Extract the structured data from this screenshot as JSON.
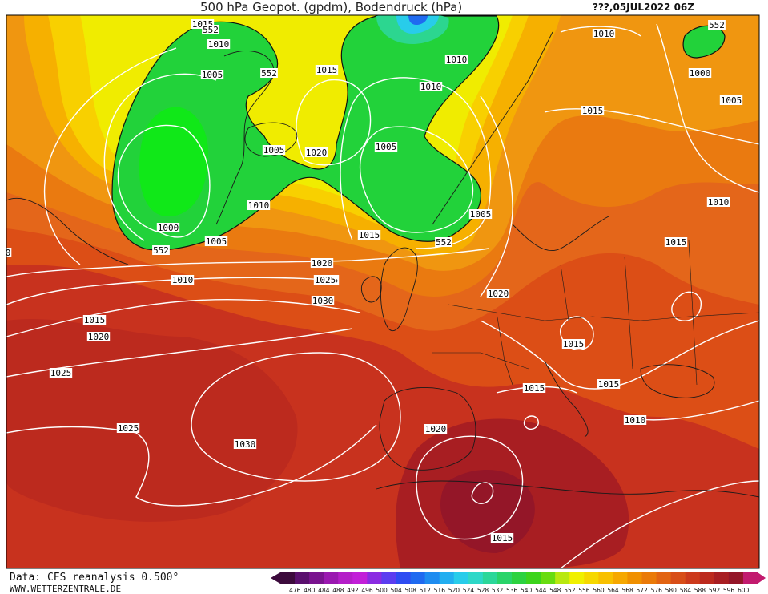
{
  "header": {
    "title": "500 hPa Geopot. (gpdm), Bodendruck (hPa)",
    "date": "???,05JUL2022 06Z"
  },
  "footer": {
    "data_source": "Data: CFS reanalysis 0.500°",
    "website": "WWW.WETTERZENTRALE.DE"
  },
  "colorbar": {
    "labels": [
      "476",
      "480",
      "484",
      "488",
      "492",
      "496",
      "500",
      "504",
      "508",
      "512",
      "516",
      "520",
      "524",
      "528",
      "532",
      "536",
      "540",
      "544",
      "548",
      "552",
      "556",
      "560",
      "564",
      "568",
      "572",
      "576",
      "580",
      "584",
      "588",
      "592",
      "596",
      "600"
    ],
    "colors": [
      "#3c0a3c",
      "#5a0f6e",
      "#7a138f",
      "#9a18b0",
      "#b41ec8",
      "#c21fd8",
      "#8a2be2",
      "#5b3df0",
      "#2e4cf2",
      "#1f6af0",
      "#1e8cf0",
      "#22aef0",
      "#28ccea",
      "#2ed8c8",
      "#2cd79a",
      "#2ad46a",
      "#2cd240",
      "#3cd41c",
      "#68dc10",
      "#b8e810",
      "#f0f000",
      "#f6d800",
      "#f8c000",
      "#f6a800",
      "#f09000",
      "#ea7a08",
      "#e26412",
      "#d84e18",
      "#cc3a1c",
      "#bc2a1e",
      "#a81e22",
      "#941628",
      "#c21a6e"
    ]
  },
  "isobar_labels": [
    {
      "text": "1015"
    },
    {
      "text": "1010"
    },
    {
      "text": "552"
    },
    {
      "text": "1005"
    },
    {
      "text": "552"
    },
    {
      "text": "1015"
    },
    {
      "text": "1010"
    },
    {
      "text": "1010"
    },
    {
      "text": "1005"
    },
    {
      "text": "1020"
    },
    {
      "text": "1005"
    },
    {
      "text": "1010"
    },
    {
      "text": "1000"
    },
    {
      "text": "1005"
    },
    {
      "text": "552"
    },
    {
      "text": "1015"
    },
    {
      "text": "1020"
    },
    {
      "text": "1025"
    },
    {
      "text": "1010"
    },
    {
      "text": "1030"
    },
    {
      "text": "1015"
    },
    {
      "text": "1020"
    },
    {
      "text": "1025"
    },
    {
      "text": "1005"
    },
    {
      "text": "552"
    },
    {
      "text": "1020"
    },
    {
      "text": "1010"
    },
    {
      "text": "1015"
    },
    {
      "text": "552"
    },
    {
      "text": "1000"
    },
    {
      "text": "1005"
    },
    {
      "text": "1010"
    },
    {
      "text": "1015"
    },
    {
      "text": "1015"
    },
    {
      "text": "1015"
    },
    {
      "text": "1015"
    },
    {
      "text": "1010"
    },
    {
      "text": "1025"
    },
    {
      "text": "1030"
    },
    {
      "text": "1020"
    },
    {
      "text": "1025"
    },
    {
      "text": "1015"
    },
    {
      "text": "0"
    }
  ]
}
